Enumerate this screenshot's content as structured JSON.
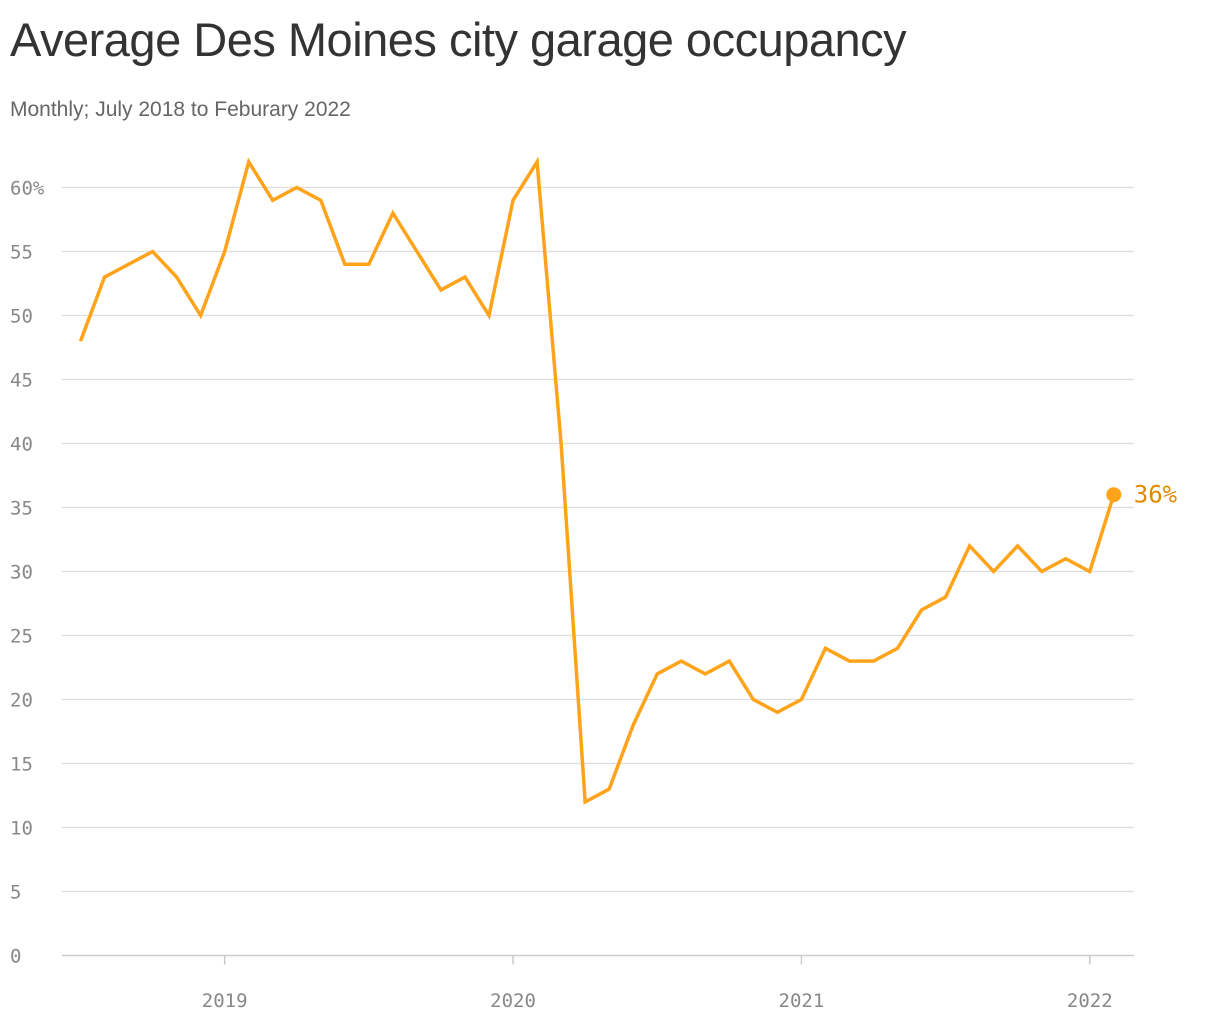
{
  "chart_data": {
    "type": "line",
    "title": "Average Des Moines city garage occupancy",
    "subtitle": "Monthly; July 2018 to Feburary 2022",
    "xlabel": "",
    "ylabel": "",
    "x_start": "2018-07",
    "x_end": "2022-02",
    "xlim": [
      "2018-07",
      "2022-02"
    ],
    "ylim": [
      0,
      60
    ],
    "y_ticks": [
      0,
      5,
      10,
      15,
      20,
      25,
      30,
      35,
      40,
      45,
      50,
      55,
      60
    ],
    "y_tick_labels": [
      "0",
      "5",
      "10",
      "15",
      "20",
      "25",
      "30",
      "35",
      "40",
      "45",
      "50",
      "55",
      "60%"
    ],
    "x_tick_labels": [
      "2019",
      "2020",
      "2021",
      "2022"
    ],
    "grid": true,
    "series": [
      {
        "values": [
          48,
          53,
          54,
          55,
          53,
          50,
          55,
          62,
          59,
          60,
          59,
          54,
          54,
          58,
          55,
          52,
          53,
          50,
          59,
          62,
          40,
          12,
          13,
          18,
          22,
          23,
          22,
          23,
          20,
          19,
          20,
          24,
          23,
          23,
          24,
          27,
          28,
          32,
          30,
          32,
          30,
          31,
          30,
          36
        ]
      }
    ],
    "end_label": "36%",
    "line_color": "#ffa31a",
    "end_label_color": "#e08a00",
    "grid_color": "#dddddd",
    "axis_color": "#cccccc"
  }
}
